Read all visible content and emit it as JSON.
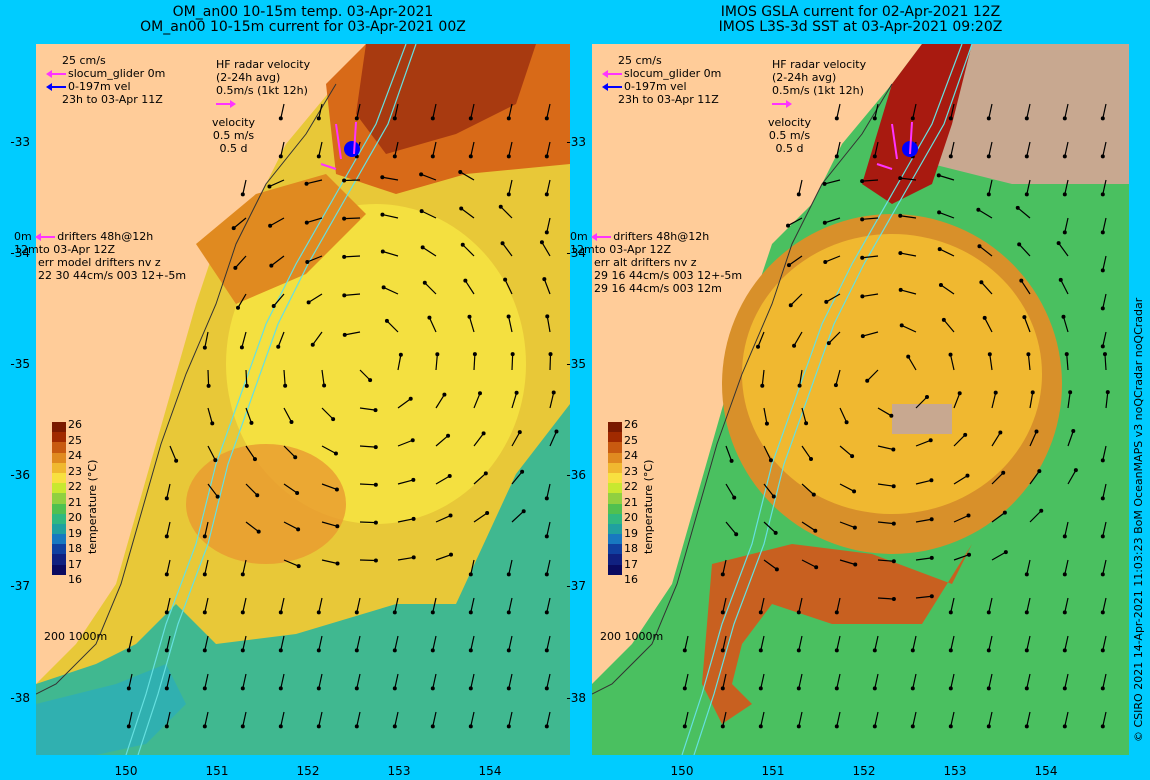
{
  "titles": {
    "left": [
      "OM_an00 10-15m temp. 03-Apr-2021",
      "OM_an00 10-15m current for 03-Apr-2021 00Z"
    ],
    "right": [
      "IMOS GSLA current for 02-Apr-2021 12Z",
      "IMOS L3S-3d SST at 03-Apr-2021 09:20Z"
    ]
  },
  "legend": {
    "scale": "25 cm/s",
    "glider": "slocum_glider 0m",
    "depth": "0-197m vel",
    "period": "23h to 03-Apr 11Z",
    "hf_title": "HF radar velocity",
    "hf_avg": "(2-24h avg)",
    "hf_scale": "0.5m/s (1kt 12h)",
    "vel_title": "velocity",
    "vel_scale": "0.5 m/s",
    "vel_days": "0.5 d",
    "drifters": "drifters 48h@12h",
    "drifters_to": "to 03-Apr 12Z",
    "drifter_zero": "0m",
    "drifter_twelve": "12m",
    "err_left": "err model drifters nv z",
    "stat_left_1": "22 30 44cm/s 003 12+-5m",
    "err_right": "err alt drifters nv z",
    "stat_right_1": "29 16 44cm/s 003 12+-5m",
    "stat_right_2": "29 16 44cm/s 003 12m",
    "isobaths": "200  1000m"
  },
  "colorbar": {
    "title": "temperature (°C)",
    "labels": [
      "26",
      "25",
      "24",
      "23",
      "22",
      "21",
      "20",
      "19",
      "18",
      "17",
      "16"
    ],
    "colors": [
      "#7a1a00",
      "#a02a00",
      "#c85a10",
      "#e08a20",
      "#f0b830",
      "#f8e040",
      "#c8e830",
      "#90d040",
      "#50c050",
      "#30b880",
      "#20a0a0",
      "#1878c0",
      "#1040a0",
      "#102080",
      "#0a0a60"
    ]
  },
  "y_ticks": [
    "-33",
    "-34",
    "-35",
    "-36",
    "-37",
    "-38"
  ],
  "x_ticks": [
    "150",
    "151",
    "152",
    "153",
    "154"
  ],
  "credit": "© CSIRO 2021  14-Apr-2021 11:03:23 BoM OceanMAPS v3 noQCradar noQCradar",
  "colors": {
    "background": "#00ccff",
    "land": "#ffcc99",
    "missing": "#c8a890",
    "glider": "#ff33ff",
    "adcp": "#0000ff",
    "isobath": "#66e0e0"
  }
}
